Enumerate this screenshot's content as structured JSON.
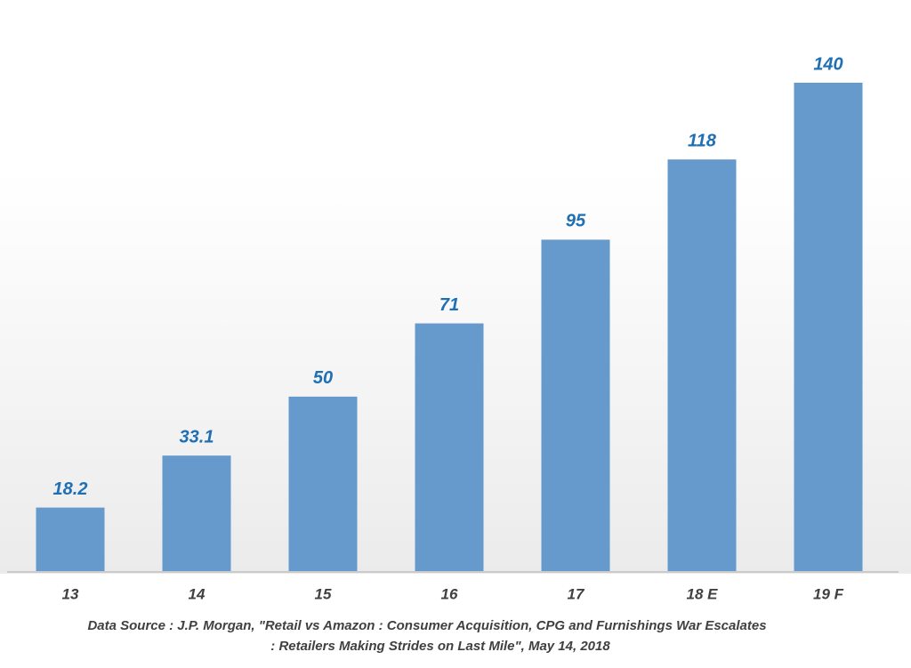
{
  "chart_data": {
    "type": "bar",
    "categories": [
      "13",
      "14",
      "15",
      "16",
      "17",
      "18 E",
      "19 F"
    ],
    "values": [
      18.2,
      33.1,
      50,
      71,
      95,
      118,
      140
    ],
    "color": "#6699cc",
    "source": [
      "Data Source :  J.P. Morgan, \"Retail vs Amazon : Consumer Acquisition, CPG and  Furnishings War Escalates",
      ": Retailers Making Strides on Last Mile\", May 14, 2018"
    ]
  }
}
